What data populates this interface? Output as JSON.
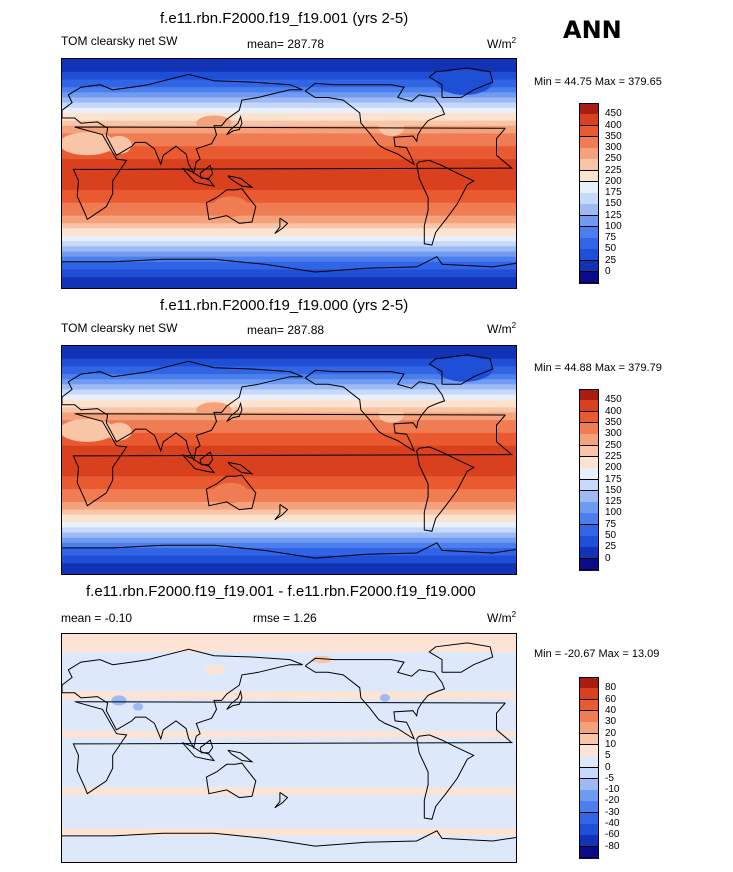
{
  "season": "ANN",
  "panels": [
    {
      "title": "f.e11.rbn.F2000.f19_f19.001 (yrs 2-5)",
      "left_label": "TOM clearsky net SW",
      "center_label": "mean= 287.78",
      "units": "W/m",
      "units_sup": "2",
      "min_max": "Min =  44.75 Max = 379.65",
      "colorbar_labels": [
        "450",
        "400",
        "350",
        "300",
        "250",
        "225",
        "200",
        "175",
        "150",
        "125",
        "100",
        "75",
        "50",
        "25",
        "0"
      ],
      "field": "sw"
    },
    {
      "title": "f.e11.rbn.F2000.f19_f19.000 (yrs 2-5)",
      "left_label": "TOM clearsky net SW",
      "center_label": "mean= 287.88",
      "units": "W/m",
      "units_sup": "2",
      "min_max": "Min =  44.88 Max = 379.79",
      "colorbar_labels": [
        "450",
        "400",
        "350",
        "300",
        "250",
        "225",
        "200",
        "175",
        "150",
        "125",
        "100",
        "75",
        "50",
        "25",
        "0"
      ],
      "field": "sw"
    },
    {
      "title": "f.e11.rbn.F2000.f19_f19.001 - f.e11.rbn.F2000.f19_f19.000",
      "left_label": "mean =  -0.10",
      "center_label": "rmse =   1.26",
      "units": "W/m",
      "units_sup": "2",
      "min_max": "Min = -20.67 Max =  13.09",
      "colorbar_labels": [
        "80",
        "60",
        "40",
        "30",
        "20",
        "10",
        "5",
        "0",
        "-5",
        "-10",
        "-20",
        "-30",
        "-40",
        "-60",
        "-80"
      ],
      "field": "diff"
    }
  ],
  "colors": {
    "sw_scale": [
      "#0a0a8a",
      "#1233b5",
      "#1f4fd6",
      "#3165e6",
      "#4b7fee",
      "#6f9bf2",
      "#9dbaf5",
      "#c6d9fa",
      "#e8f0fb",
      "#fbe3d2",
      "#f8c6a6",
      "#f3a27b",
      "#ef7c52",
      "#e95a30",
      "#d8401e",
      "#a81d12"
    ],
    "diff_scale": [
      "#0a0a8a",
      "#1233b5",
      "#1f4fd6",
      "#3165e6",
      "#4b7fee",
      "#6f9bf2",
      "#9dbaf5",
      "#c6d9fa",
      "#dde9fb",
      "#fde3d3",
      "#f8c6a6",
      "#f3a27b",
      "#ef7c52",
      "#e95a30",
      "#d8401e",
      "#a81d12"
    ],
    "coastline": "#000000"
  }
}
